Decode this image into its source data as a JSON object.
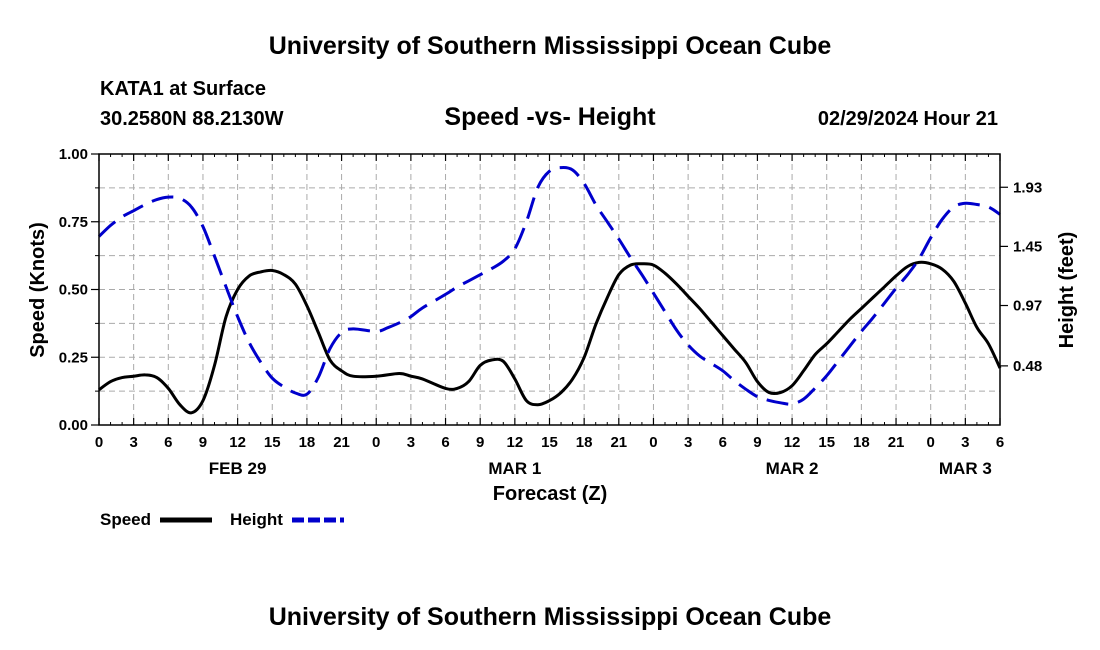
{
  "header": {
    "title": "University of Southern Mississippi Ocean Cube",
    "station": "KATA1 at Surface",
    "coords": "30.2580N  88.2130W",
    "chart_title": "Speed -vs- Height",
    "date": "02/29/2024 Hour 21"
  },
  "footer": {
    "title": "University of Southern Mississippi Ocean Cube"
  },
  "colors": {
    "speed": "#000000",
    "height": "#0000cc",
    "grid": "#aaaaaa"
  },
  "chart_data": {
    "type": "line",
    "title": "Speed -vs- Height",
    "xlabel": "Forecast (Z)",
    "ylabel": "Speed (Knots)",
    "y2label": "Height (feet)",
    "x_unit": "hours from 00Z Feb 29",
    "xlim": [
      0,
      78
    ],
    "ylim": [
      0,
      1
    ],
    "y2lim": [
      0,
      2.2
    ],
    "x_ticks": [
      0,
      3,
      6,
      9,
      12,
      15,
      18,
      21,
      24,
      27,
      30,
      33,
      36,
      39,
      42,
      45,
      48,
      51,
      54,
      57,
      60,
      63,
      66,
      69,
      72,
      75,
      78
    ],
    "x_tick_labels": [
      "0",
      "3",
      "6",
      "9",
      "12",
      "15",
      "18",
      "21",
      "0",
      "3",
      "6",
      "9",
      "12",
      "15",
      "18",
      "21",
      "0",
      "3",
      "6",
      "9",
      "12",
      "15",
      "18",
      "21",
      "0",
      "3",
      "6"
    ],
    "date_labels": [
      {
        "x": 12,
        "label": "FEB 29"
      },
      {
        "x": 36,
        "label": "MAR 1"
      },
      {
        "x": 60,
        "label": "MAR 2"
      },
      {
        "x": 75,
        "label": "MAR 3"
      }
    ],
    "y_ticks": [
      0,
      0.25,
      0.5,
      0.75,
      1.0
    ],
    "y_tick_labels": [
      "0.00",
      "0.25",
      "0.50",
      "0.75",
      "1.00"
    ],
    "y2_ticks": [
      0.48,
      0.97,
      1.45,
      1.93
    ],
    "y2_tick_labels": [
      "0.48",
      "0.97",
      "1.45",
      "1.93"
    ],
    "series": [
      {
        "name": "Speed",
        "axis": "left",
        "style": "solid",
        "x": [
          0,
          1,
          2,
          3,
          4,
          5,
          6,
          7,
          8,
          9,
          10,
          11,
          12,
          13,
          14,
          15,
          16,
          17,
          18,
          19,
          20,
          21,
          22,
          24,
          26,
          27,
          28,
          30,
          31,
          32,
          33,
          34,
          35,
          36,
          37,
          38,
          39,
          40,
          41,
          42,
          43,
          44,
          45,
          46,
          47,
          48,
          49,
          50,
          51,
          52,
          53,
          54,
          55,
          56,
          57,
          58,
          59,
          60,
          61,
          62,
          63,
          64,
          65,
          66,
          67,
          68,
          69,
          70,
          71,
          72,
          73,
          74,
          75,
          76,
          77,
          78
        ],
        "values": [
          0.13,
          0.16,
          0.175,
          0.18,
          0.185,
          0.175,
          0.135,
          0.075,
          0.045,
          0.09,
          0.22,
          0.4,
          0.5,
          0.55,
          0.565,
          0.57,
          0.555,
          0.52,
          0.44,
          0.34,
          0.24,
          0.2,
          0.18,
          0.18,
          0.19,
          0.18,
          0.17,
          0.135,
          0.135,
          0.16,
          0.22,
          0.24,
          0.235,
          0.17,
          0.09,
          0.075,
          0.09,
          0.12,
          0.17,
          0.25,
          0.37,
          0.47,
          0.555,
          0.59,
          0.595,
          0.59,
          0.56,
          0.52,
          0.475,
          0.43,
          0.38,
          0.33,
          0.28,
          0.23,
          0.16,
          0.12,
          0.12,
          0.145,
          0.2,
          0.26,
          0.3,
          0.345,
          0.39,
          0.43,
          0.47,
          0.51,
          0.55,
          0.585,
          0.6,
          0.595,
          0.575,
          0.53,
          0.45,
          0.36,
          0.3,
          0.21
        ]
      },
      {
        "name": "Height",
        "axis": "right",
        "style": "dashed",
        "x": [
          0,
          1,
          2,
          3,
          4,
          5,
          6,
          7,
          8,
          9,
          10,
          11,
          12,
          13,
          14,
          15,
          16,
          17,
          18,
          19,
          20,
          21,
          22,
          24,
          25,
          26,
          27,
          28,
          30,
          31,
          32,
          33,
          34,
          35,
          36,
          37,
          38,
          39,
          40,
          41,
          42,
          43,
          44,
          45,
          46,
          47,
          48,
          49,
          50,
          51,
          52,
          53,
          54,
          55,
          56,
          57,
          58,
          59,
          60,
          61,
          62,
          63,
          64,
          65,
          66,
          67,
          68,
          69,
          70,
          71,
          72,
          73,
          74,
          75,
          76,
          77,
          78
        ],
        "values": [
          1.53,
          1.62,
          1.69,
          1.74,
          1.79,
          1.83,
          1.85,
          1.84,
          1.77,
          1.61,
          1.37,
          1.12,
          0.88,
          0.67,
          0.51,
          0.38,
          0.31,
          0.26,
          0.25,
          0.39,
          0.62,
          0.75,
          0.78,
          0.76,
          0.79,
          0.83,
          0.88,
          0.95,
          1.06,
          1.12,
          1.17,
          1.22,
          1.27,
          1.33,
          1.43,
          1.65,
          1.93,
          2.06,
          2.09,
          2.07,
          1.96,
          1.79,
          1.65,
          1.51,
          1.36,
          1.22,
          1.07,
          0.92,
          0.77,
          0.65,
          0.56,
          0.5,
          0.44,
          0.36,
          0.29,
          0.23,
          0.2,
          0.18,
          0.17,
          0.21,
          0.3,
          0.4,
          0.52,
          0.64,
          0.76,
          0.87,
          0.99,
          1.11,
          1.22,
          1.35,
          1.52,
          1.67,
          1.77,
          1.8,
          1.79,
          1.77,
          1.71
        ]
      }
    ],
    "legend": [
      {
        "name": "Speed",
        "style": "solid"
      },
      {
        "name": "Height",
        "style": "dashed"
      }
    ],
    "grid": true
  }
}
